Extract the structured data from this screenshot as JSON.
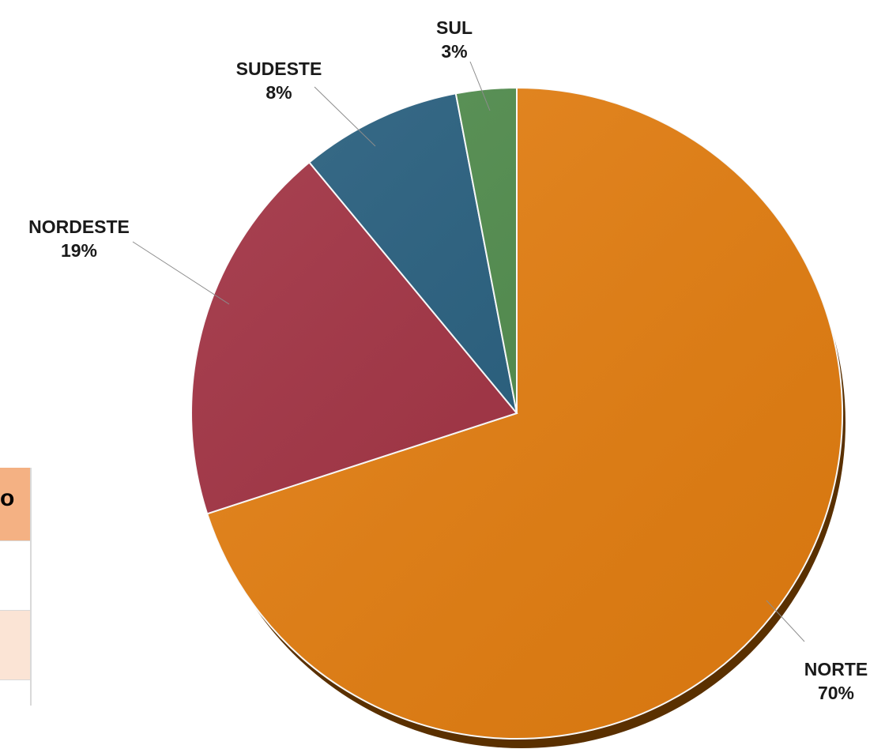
{
  "chart_data": {
    "type": "pie",
    "title": "",
    "slices": [
      {
        "label": "NORTE",
        "percent_label": "70%",
        "value": 70,
        "color": "#e47e10"
      },
      {
        "label": "NORDESTE",
        "percent_label": "19%",
        "value": 19,
        "color": "#a02f40"
      },
      {
        "label": "SUDESTE",
        "percent_label": "8%",
        "value": 8,
        "color": "#245c7c"
      },
      {
        "label": "SUL",
        "percent_label": "3%",
        "value": 3,
        "color": "#4e8a4a"
      }
    ],
    "start_angle": "12 o'clock",
    "direction": "clockwise",
    "shadow_color": "#5a3000"
  },
  "table_fragment": {
    "header_text": "o"
  }
}
